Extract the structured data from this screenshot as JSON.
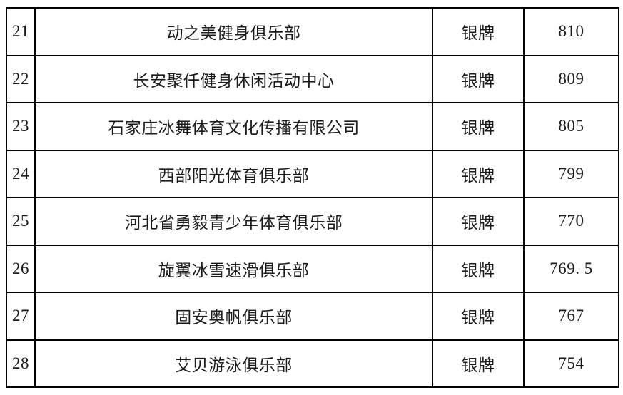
{
  "colors": {
    "background": "#ffffff",
    "border": "#000000",
    "text": "#1a1a1a"
  },
  "table": {
    "description": "club-ranking-table-rows-21-28",
    "medal_label_common": "银牌",
    "rows": [
      {
        "rank": "21",
        "club": "动之美健身俱乐部",
        "medal": "银牌",
        "score": "810"
      },
      {
        "rank": "22",
        "club": "长安聚仟健身休闲活动中心",
        "medal": "银牌",
        "score": "809"
      },
      {
        "rank": "23",
        "club": "石家庄冰舞体育文化传播有限公司",
        "medal": "银牌",
        "score": "805"
      },
      {
        "rank": "24",
        "club": "西部阳光体育俱乐部",
        "medal": "银牌",
        "score": "799"
      },
      {
        "rank": "25",
        "club": "河北省勇毅青少年体育俱乐部",
        "medal": "银牌",
        "score": "770"
      },
      {
        "rank": "26",
        "club": "旋翼冰雪速滑俱乐部",
        "medal": "银牌",
        "score": "769. 5"
      },
      {
        "rank": "27",
        "club": "固安奥帆俱乐部",
        "medal": "银牌",
        "score": "767"
      },
      {
        "rank": "28",
        "club": "艾贝游泳俱乐部",
        "medal": "银牌",
        "score": "754"
      }
    ]
  }
}
